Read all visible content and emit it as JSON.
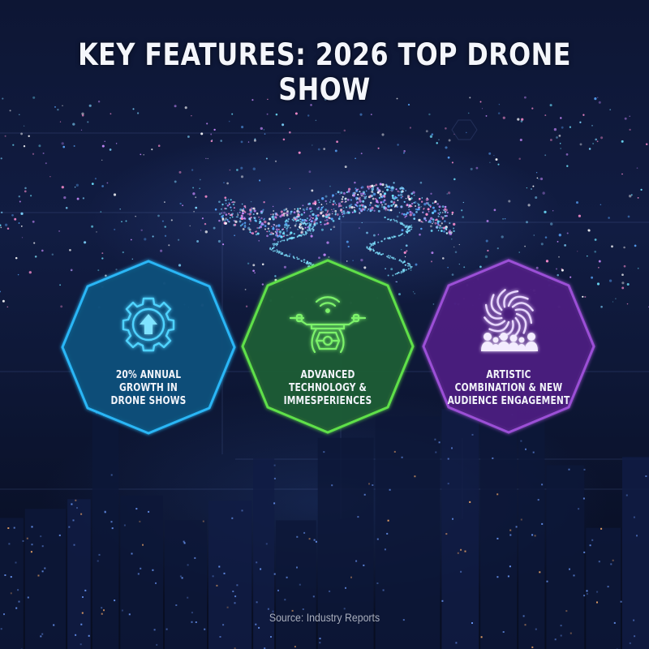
{
  "title": "KEY FEATURES: 2026 TOP DRONE SHOW",
  "cards": [
    {
      "icon": "gear-up-arrow-icon",
      "color": "#29b6f6",
      "fill": "#0e4f7a",
      "lines": [
        "20% ANNUAL",
        "GROWTH IN",
        "DRONE SHOWS"
      ]
    },
    {
      "icon": "drone-wifi-icon",
      "color": "#5fe04a",
      "fill": "#1f5a35",
      "lines": [
        "ADVANCED",
        "TECHNOLOGY &",
        "IMMESPERIENCES"
      ]
    },
    {
      "icon": "swirl-audience-icon",
      "color": "#9b4fd6",
      "fill": "#4a1f7e",
      "lines": [
        "ARTISTIC",
        "COMBINATION & NEW",
        "AUDIENCE ENGAGEMENT"
      ]
    }
  ],
  "source": "Source: Industry Reports"
}
